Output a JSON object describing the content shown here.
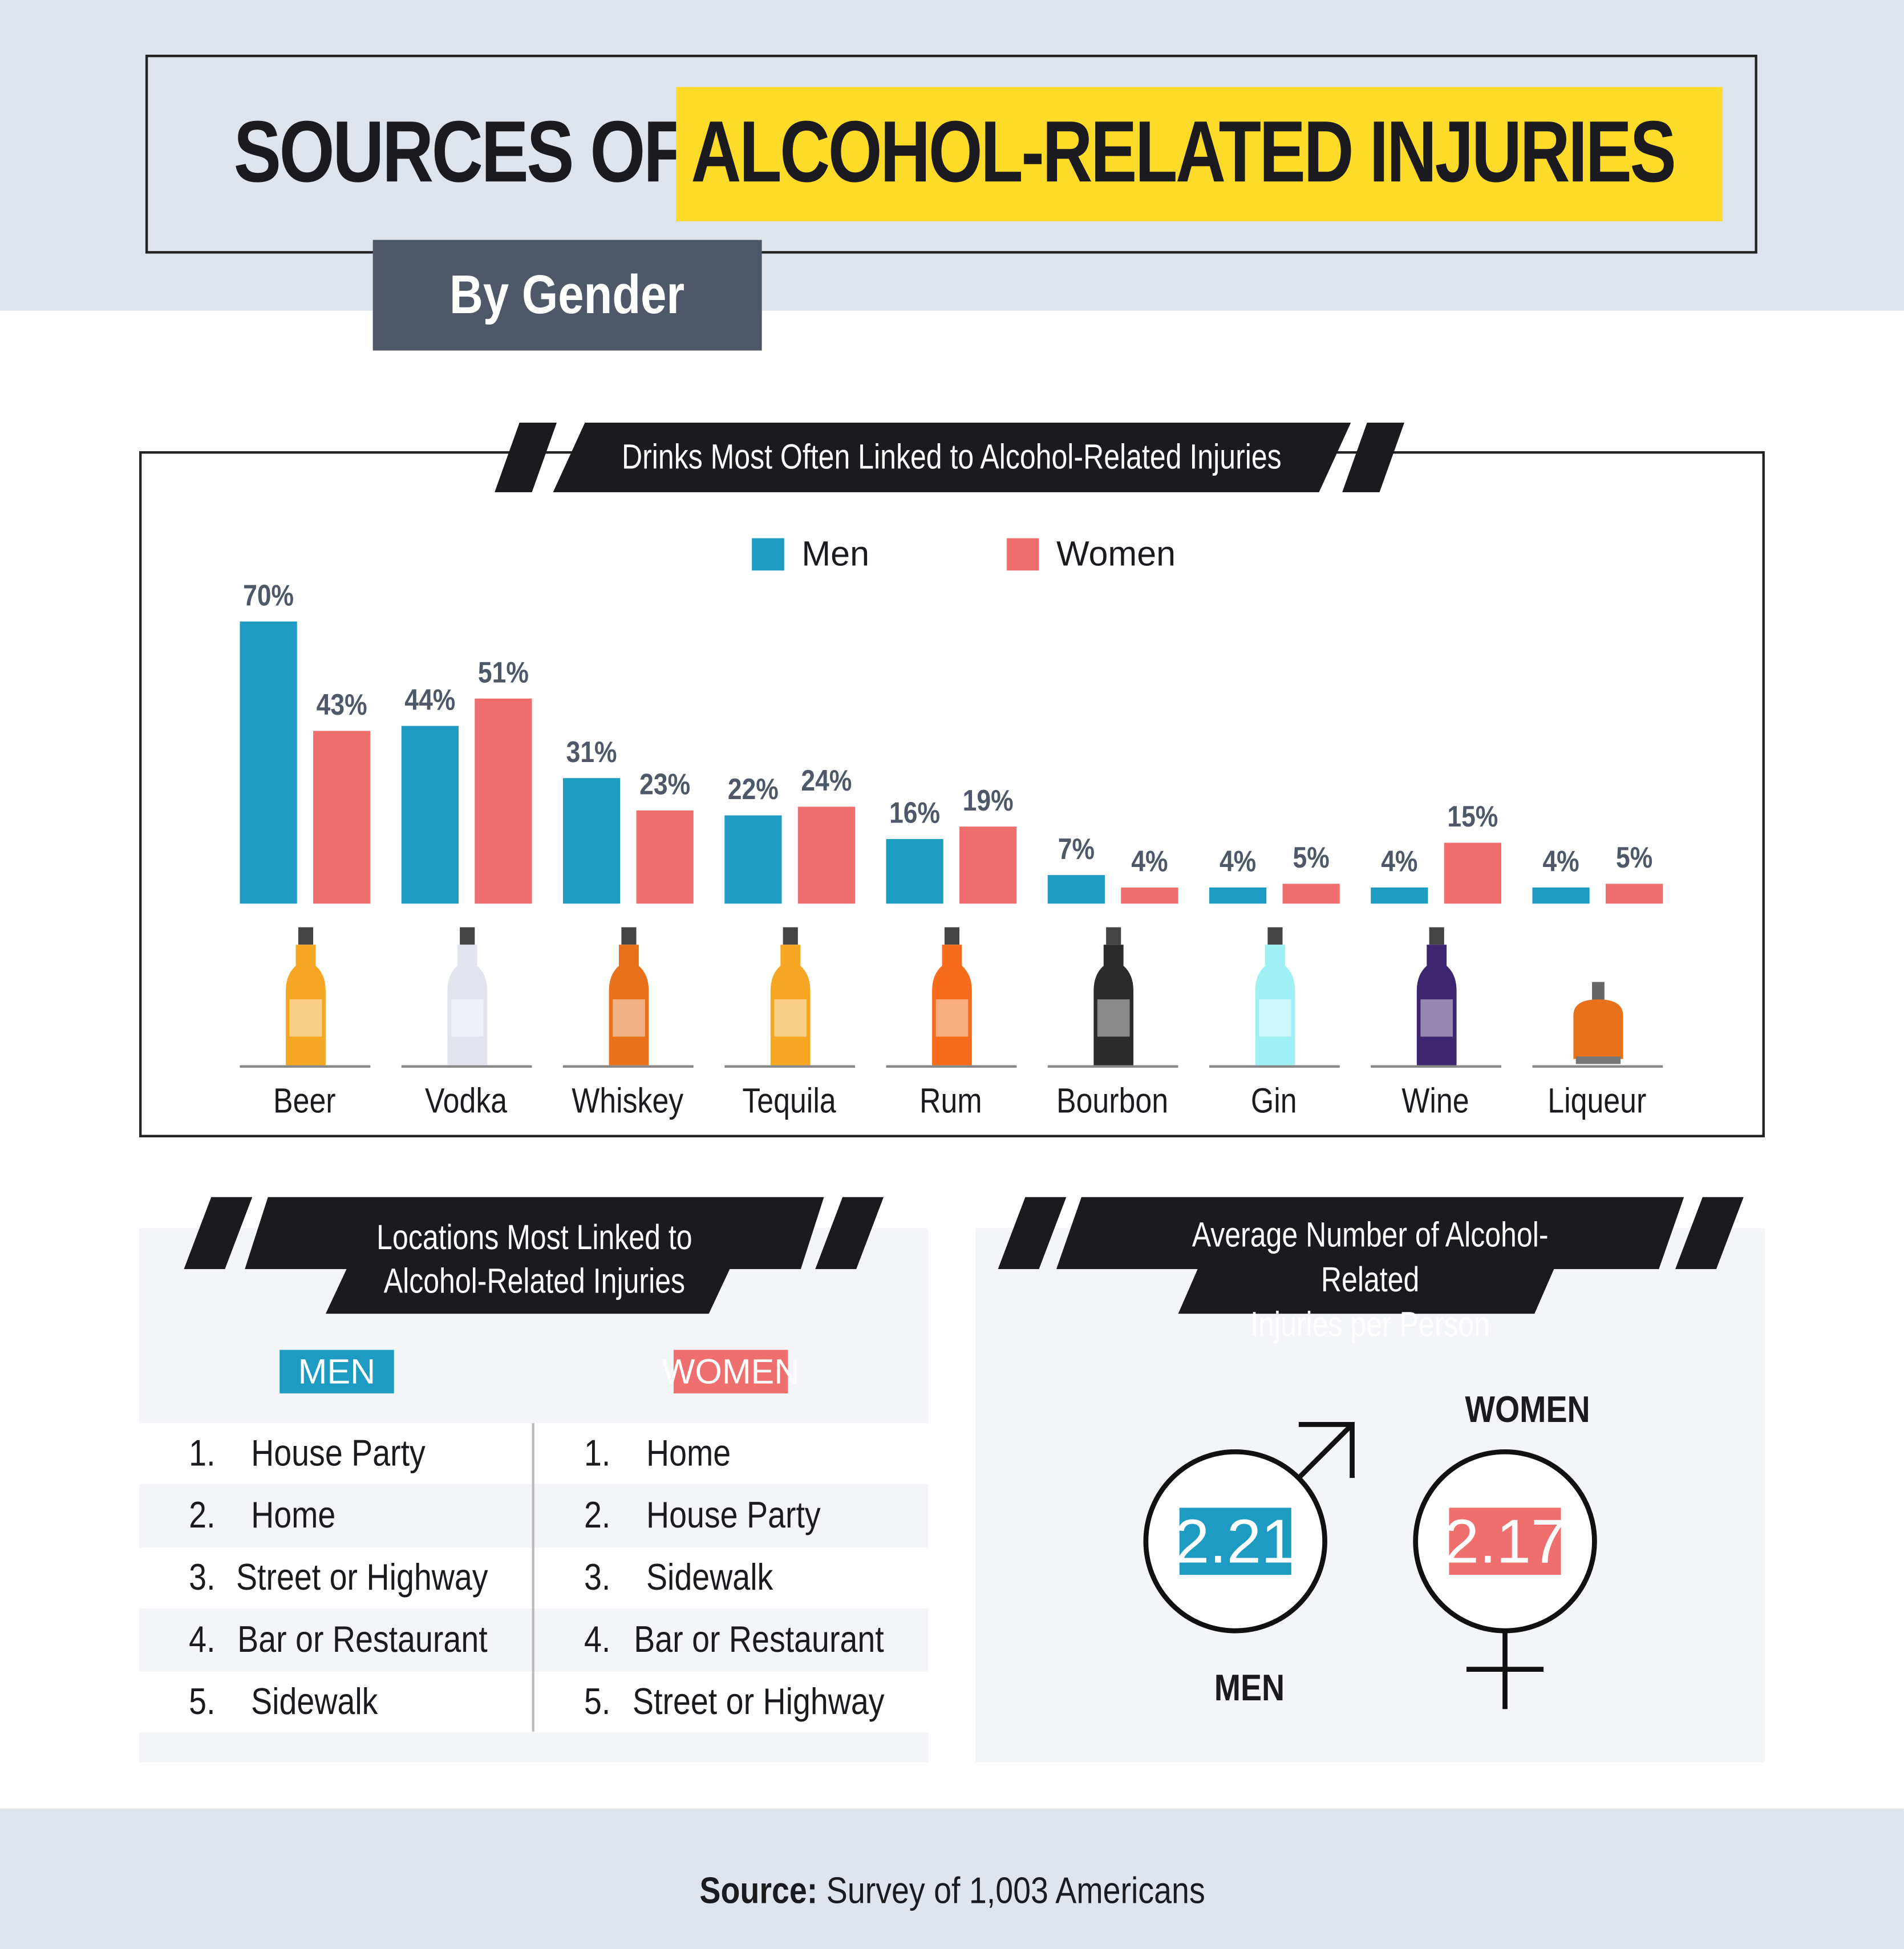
{
  "title": {
    "part1": "SOURCES OF",
    "part2": "ALCOHOL-RELATED INJURIES",
    "subtitle": "By Gender"
  },
  "colors": {
    "men": "#1e9bc2",
    "women": "#ef6f6f",
    "highlight": "#ffdb29",
    "dark": "#1a1a1f"
  },
  "chart_data": {
    "type": "bar",
    "title": "Drinks Most Often Linked to Alcohol-Related Injuries",
    "categories": [
      "Beer",
      "Vodka",
      "Whiskey",
      "Tequila",
      "Rum",
      "Bourbon",
      "Gin",
      "Wine",
      "Liqueur"
    ],
    "series": [
      {
        "name": "Men",
        "values": [
          70,
          44,
          31,
          22,
          16,
          7,
          4,
          4,
          4
        ],
        "labels": [
          "70%",
          "44%",
          "31%",
          "22%",
          "16%",
          "7%",
          "4%",
          "4%",
          "4%"
        ]
      },
      {
        "name": "Women",
        "values": [
          43,
          51,
          23,
          24,
          19,
          4,
          5,
          15,
          5
        ],
        "labels": [
          "43%",
          "51%",
          "23%",
          "24%",
          "19%",
          "4%",
          "5%",
          "15%",
          "5%"
        ]
      }
    ],
    "legend": "top-center",
    "ylim": [
      0,
      70
    ],
    "icons": [
      "beer-bottle",
      "vodka-bottle",
      "whiskey-bottle",
      "tequila-bottle",
      "rum-bottle",
      "bourbon-bottle",
      "gin-bottle",
      "wine-bottle",
      "liqueur-bottle"
    ],
    "icon_colors": [
      "#f5a623",
      "#e1e4ee",
      "#e8711c",
      "#f5a623",
      "#f76b1c",
      "#2b2b2b",
      "#9ff0f5",
      "#3c2670",
      "#e8711c"
    ]
  },
  "locations": {
    "title_line1": "Locations Most Linked to",
    "title_line2": "Alcohol-Related Injuries",
    "men_label": "MEN",
    "women_label": "WOMEN",
    "men": [
      {
        "n": "1.",
        "v": "House Party"
      },
      {
        "n": "2.",
        "v": "Home"
      },
      {
        "n": "3.",
        "v": "Street or Highway"
      },
      {
        "n": "4.",
        "v": "Bar or Restaurant"
      },
      {
        "n": "5.",
        "v": "Sidewalk"
      }
    ],
    "women": [
      {
        "n": "1.",
        "v": "Home"
      },
      {
        "n": "2.",
        "v": "House Party"
      },
      {
        "n": "3.",
        "v": "Sidewalk"
      },
      {
        "n": "4.",
        "v": "Bar or Restaurant"
      },
      {
        "n": "5.",
        "v": "Street or Highway"
      }
    ]
  },
  "average": {
    "title_line1": "Average Number of Alcohol-Related",
    "title_line2": "Injuries per Person",
    "men_label": "MEN",
    "men_value": "2.21",
    "women_label": "WOMEN",
    "women_value": "2.17"
  },
  "source": {
    "label": "Source:",
    "text": "Survey of 1,003 Americans"
  }
}
